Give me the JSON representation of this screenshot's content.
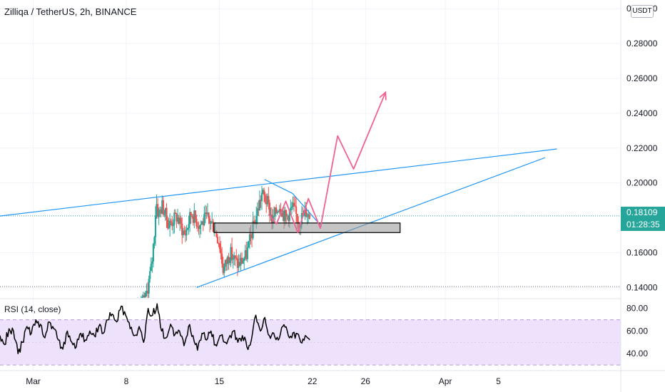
{
  "header": {
    "title": "Zilliqa / TetherUS, 2h, BINANCE",
    "currency": "USDT"
  },
  "price_tag": {
    "price": "0.18109",
    "countdown": "01:28:35"
  },
  "rsi": {
    "label": "RSI (14, close)",
    "ticks": [
      "80.00",
      "60.00",
      "40.00"
    ]
  },
  "colors": {
    "up": "#26a69a",
    "down": "#ef5350",
    "trendline": "#2196f3",
    "projection": "#f06292",
    "rsi_line": "#000000",
    "rsi_band": "#ede1fb"
  },
  "chart_data": {
    "type": "candlestick",
    "title": "Zilliqa / TetherUS, 2h, BINANCE",
    "y_ticks": [
      "0.30000",
      "0.28000",
      "0.26000",
      "0.24000",
      "0.22000",
      "0.20000",
      "0.16000",
      "0.14000"
    ],
    "ylim": [
      0.134,
      0.305
    ],
    "x_ticks": [
      "Mar",
      "8",
      "15",
      "22",
      "26",
      "Apr",
      "5"
    ],
    "x_tick_days": [
      1,
      8,
      15,
      22,
      26,
      32,
      36
    ],
    "xlim": [
      -1.5,
      45.2
    ],
    "last_price": 0.18109,
    "price_segments": [
      [
        0,
        0.125
      ],
      [
        9.0,
        0.131
      ],
      [
        9.5,
        0.136
      ],
      [
        9.9,
        0.152
      ],
      [
        10.1,
        0.17
      ],
      [
        10.25,
        0.19
      ],
      [
        10.4,
        0.182
      ],
      [
        10.7,
        0.187
      ],
      [
        11.2,
        0.176
      ],
      [
        11.8,
        0.181
      ],
      [
        12.4,
        0.17
      ],
      [
        12.9,
        0.183
      ],
      [
        13.5,
        0.176
      ],
      [
        14.1,
        0.18
      ],
      [
        14.6,
        0.175
      ],
      [
        15.0,
        0.166
      ],
      [
        15.3,
        0.15
      ],
      [
        15.8,
        0.16
      ],
      [
        16.4,
        0.153
      ],
      [
        17.0,
        0.158
      ],
      [
        17.4,
        0.17
      ],
      [
        17.8,
        0.182
      ],
      [
        18.2,
        0.194
      ],
      [
        18.6,
        0.189
      ],
      [
        19.0,
        0.178
      ],
      [
        19.5,
        0.188
      ],
      [
        20.0,
        0.18
      ],
      [
        20.5,
        0.186
      ],
      [
        21.0,
        0.178
      ],
      [
        21.5,
        0.184
      ],
      [
        21.8,
        0.181
      ]
    ],
    "drawings": {
      "upper_trendline": [
        [
          -1.5,
          0.181
        ],
        [
          40.4,
          0.2195
        ]
      ],
      "lower_trendline": [
        [
          13.3,
          0.14
        ],
        [
          39.5,
          0.2145
        ]
      ],
      "pennant": [
        [
          18.4,
          0.202
        ],
        [
          20.5,
          0.194
        ],
        [
          22.7,
          0.175
        ]
      ],
      "support_zone": {
        "x": [
          14.6,
          28.6
        ],
        "y": [
          0.1715,
          0.177
        ]
      },
      "projection": [
        [
          18.7,
          0.182
        ],
        [
          19.3,
          0.1765
        ],
        [
          20.0,
          0.1895
        ],
        [
          20.9,
          0.1715
        ],
        [
          21.7,
          0.191
        ],
        [
          22.6,
          0.174
        ],
        [
          23.9,
          0.227
        ],
        [
          25.1,
          0.208
        ],
        [
          27.5,
          0.252
        ]
      ]
    },
    "rsi_series": [
      [
        0.0,
        56
      ],
      [
        0.5,
        48
      ],
      [
        1.0,
        62
      ],
      [
        1.5,
        60
      ],
      [
        2.0,
        40
      ],
      [
        2.5,
        50
      ],
      [
        3.0,
        64
      ],
      [
        3.5,
        58
      ],
      [
        4.0,
        70
      ],
      [
        4.5,
        66
      ],
      [
        5.0,
        54
      ],
      [
        5.5,
        68
      ],
      [
        6.0,
        62
      ],
      [
        6.5,
        52
      ],
      [
        7.0,
        44
      ],
      [
        7.5,
        60
      ],
      [
        8.0,
        50
      ],
      [
        8.5,
        46
      ],
      [
        9.0,
        58
      ],
      [
        9.5,
        52
      ],
      [
        10.0,
        60
      ],
      [
        10.5,
        56
      ],
      [
        11.0,
        64
      ],
      [
        11.5,
        58
      ],
      [
        12.0,
        70
      ],
      [
        12.5,
        75
      ],
      [
        13.0,
        68
      ],
      [
        13.5,
        82
      ],
      [
        14.0,
        74
      ],
      [
        14.5,
        62
      ],
      [
        15.0,
        56
      ],
      [
        15.5,
        64
      ],
      [
        16.0,
        50
      ],
      [
        16.5,
        80
      ],
      [
        17.0,
        74
      ],
      [
        17.5,
        84
      ],
      [
        18.0,
        60
      ],
      [
        18.5,
        54
      ],
      [
        19.0,
        66
      ],
      [
        19.5,
        57
      ],
      [
        20.0,
        60
      ],
      [
        20.5,
        47
      ],
      [
        21.0,
        64
      ],
      [
        21.5,
        56
      ],
      [
        22.0,
        43
      ],
      [
        22.5,
        58
      ],
      [
        23.0,
        52
      ],
      [
        23.5,
        60
      ],
      [
        24.0,
        48
      ],
      [
        24.5,
        56
      ],
      [
        25.0,
        50
      ],
      [
        25.5,
        54
      ],
      [
        26.0,
        60
      ],
      [
        26.5,
        50
      ],
      [
        27.0,
        56
      ],
      [
        27.5,
        46
      ],
      [
        28.0,
        52
      ],
      [
        28.5,
        74
      ],
      [
        29.0,
        60
      ],
      [
        29.5,
        72
      ],
      [
        30.0,
        56
      ],
      [
        30.5,
        58
      ],
      [
        31.0,
        52
      ],
      [
        31.5,
        64
      ],
      [
        32.0,
        60
      ],
      [
        32.5,
        54
      ],
      [
        33.0,
        58
      ],
      [
        33.5,
        50
      ],
      [
        34.0,
        56
      ],
      [
        34.5,
        52
      ]
    ],
    "rsi_ylim": [
      25,
      88
    ]
  }
}
